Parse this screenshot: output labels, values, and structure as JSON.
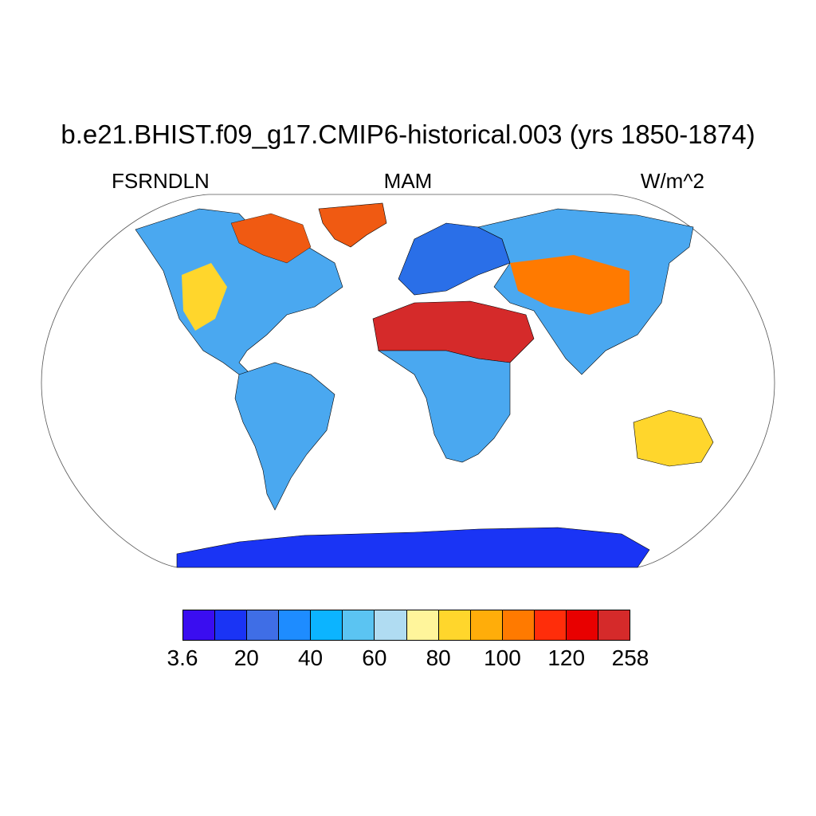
{
  "title": "b.e21.BHIST.f09_g17.CMIP6-historical.003 (yrs 1850-1874)",
  "left_subtitle": "FSRNDLN",
  "center_subtitle": "MAM",
  "right_subtitle": "W/m^2",
  "colorbar": {
    "colors": [
      "#3a0df0",
      "#1a34f5",
      "#3f6ee6",
      "#1e8cff",
      "#0cb4ff",
      "#5bc4f2",
      "#b0dcf2",
      "#fff59b",
      "#ffd62c",
      "#ffad0a",
      "#ff7a00",
      "#ff2d0a",
      "#e80000",
      "#d52a2a"
    ],
    "labels": [
      "3.6",
      "20",
      "40",
      "60",
      "80",
      "100",
      "120",
      "258"
    ]
  },
  "map": {
    "projection": "Robinson",
    "regions": [
      {
        "name": "north-america",
        "color": "#4aa8f0"
      },
      {
        "name": "greenland",
        "color": "#f05a12"
      },
      {
        "name": "south-america",
        "color": "#4aa8f0"
      },
      {
        "name": "europe",
        "color": "#2a6fe8"
      },
      {
        "name": "asia",
        "color": "#4aa8f0"
      },
      {
        "name": "sahara-arabia",
        "color": "#d52a2a"
      },
      {
        "name": "africa",
        "color": "#4aa8f0"
      },
      {
        "name": "australia",
        "color": "#ffd62c"
      },
      {
        "name": "antarctica",
        "color": "#1a34f5"
      }
    ]
  }
}
